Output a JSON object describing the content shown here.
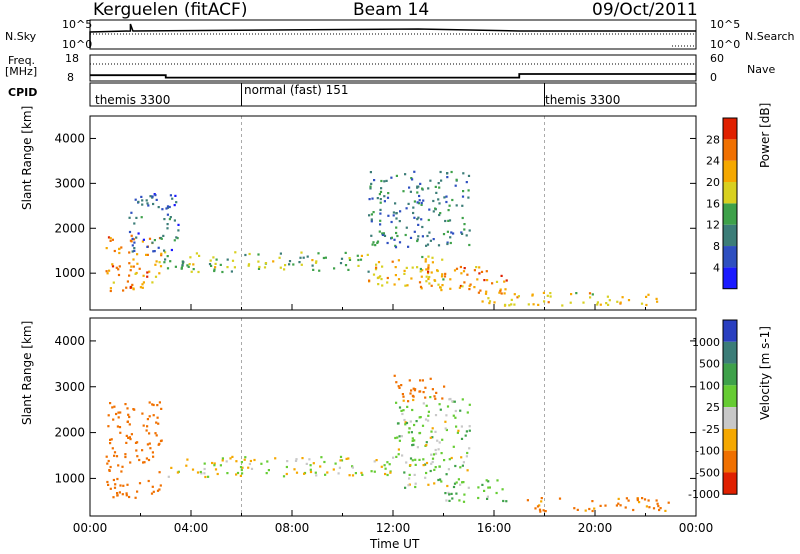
{
  "header": {
    "station": "Kerguelen (fitACF)",
    "beam": "Beam 14",
    "date": "09/Oct/2011"
  },
  "top_panels": {
    "nsky_label": "N.Sky",
    "nsky_ticks": [
      "10^5",
      "10^0"
    ],
    "nsearch_label": "N.Search",
    "nsearch_ticks": [
      "10^5",
      "10^0"
    ],
    "freq_label": "Freq.",
    "freq_unit": "[MHz]",
    "freq_ticks": [
      "18",
      "8"
    ],
    "nave_label": "Nave",
    "nave_ticks": [
      "60",
      "0"
    ],
    "cpid_label": "CPID",
    "cpid_segments": [
      {
        "label": "themis 3300",
        "start_hour": 0
      },
      {
        "label": "normal (fast) 151",
        "start_hour": 6
      },
      {
        "label": "themis 3300",
        "start_hour": 18
      }
    ],
    "freq_series": [
      {
        "start_hour": 0,
        "end_hour": 3,
        "value_mhz": 10
      },
      {
        "start_hour": 3,
        "end_hour": 17,
        "value_mhz": 9
      },
      {
        "start_hour": 17,
        "end_hour": 24,
        "value_mhz": 10.5
      }
    ]
  },
  "chart_data": [
    {
      "type": "heatmap",
      "title": "",
      "xlabel": "",
      "ylabel": "Slant Range [km]",
      "xlim": [
        0,
        24
      ],
      "ylim": [
        180,
        4500
      ],
      "y_ticks": [
        1000,
        2000,
        3000,
        4000
      ],
      "colorbar_label": "Power [dB]",
      "colorbar_ticks": [
        "4",
        "8",
        "12",
        "16",
        "20",
        "24",
        "28"
      ],
      "colorbar_range": [
        0,
        30
      ],
      "colors": [
        "#1a1aff",
        "#2e4fc0",
        "#3c7d78",
        "#3ea14a",
        "#d8d020",
        "#f5a800",
        "#f07000",
        "#e02000"
      ],
      "regions": [
        {
          "x": [
            0.6,
            2.8
          ],
          "y": [
            600,
            1900
          ],
          "level": 24
        },
        {
          "x": [
            2.9,
            11
          ],
          "y": [
            1050,
            1500
          ],
          "level": 16
        },
        {
          "x": [
            11,
            14
          ],
          "y": [
            700,
            1400
          ],
          "level": 20
        },
        {
          "x": [
            13,
            16.5
          ],
          "y": [
            550,
            1200
          ],
          "level": 24
        },
        {
          "x": [
            1.5,
            3.5
          ],
          "y": [
            1500,
            2800
          ],
          "level": 8
        },
        {
          "x": [
            11,
            15
          ],
          "y": [
            1600,
            3300
          ],
          "level": 10
        },
        {
          "x": [
            15.5,
            22.5
          ],
          "y": [
            300,
            600
          ],
          "level": 20
        }
      ]
    },
    {
      "type": "heatmap",
      "title": "",
      "xlabel": "Time UT",
      "ylabel": "Slant Range [km]",
      "xlim": [
        0,
        24
      ],
      "ylim": [
        180,
        4500
      ],
      "y_ticks": [
        1000,
        2000,
        3000,
        4000
      ],
      "x_ticks": [
        "00:00",
        "04:00",
        "08:00",
        "12:00",
        "16:00",
        "20:00",
        "00:00"
      ],
      "colorbar_label": "Velocity [m s-1]",
      "colorbar_ticks": [
        "1000",
        "500",
        "100",
        "25",
        "-25",
        "-100",
        "-500",
        "-1000"
      ],
      "colors": [
        "#2a3fc0",
        "#3c7d78",
        "#3ea14a",
        "#66cc33",
        "#c8c8c8",
        "#f5a800",
        "#f07000",
        "#e02000"
      ],
      "regions": [
        {
          "x": [
            0.6,
            2.8
          ],
          "y": [
            600,
            2700
          ],
          "velocity": -300
        },
        {
          "x": [
            2.9,
            12
          ],
          "y": [
            1050,
            1500
          ],
          "velocity": 0
        },
        {
          "x": [
            12,
            15
          ],
          "y": [
            800,
            2800
          ],
          "velocity": 50
        },
        {
          "x": [
            14,
            16.5
          ],
          "y": [
            500,
            1000
          ],
          "velocity": 100
        },
        {
          "x": [
            12,
            14
          ],
          "y": [
            2700,
            3300
          ],
          "velocity": -300
        },
        {
          "x": [
            17,
            23
          ],
          "y": [
            300,
            600
          ],
          "velocity": -150
        }
      ]
    }
  ]
}
